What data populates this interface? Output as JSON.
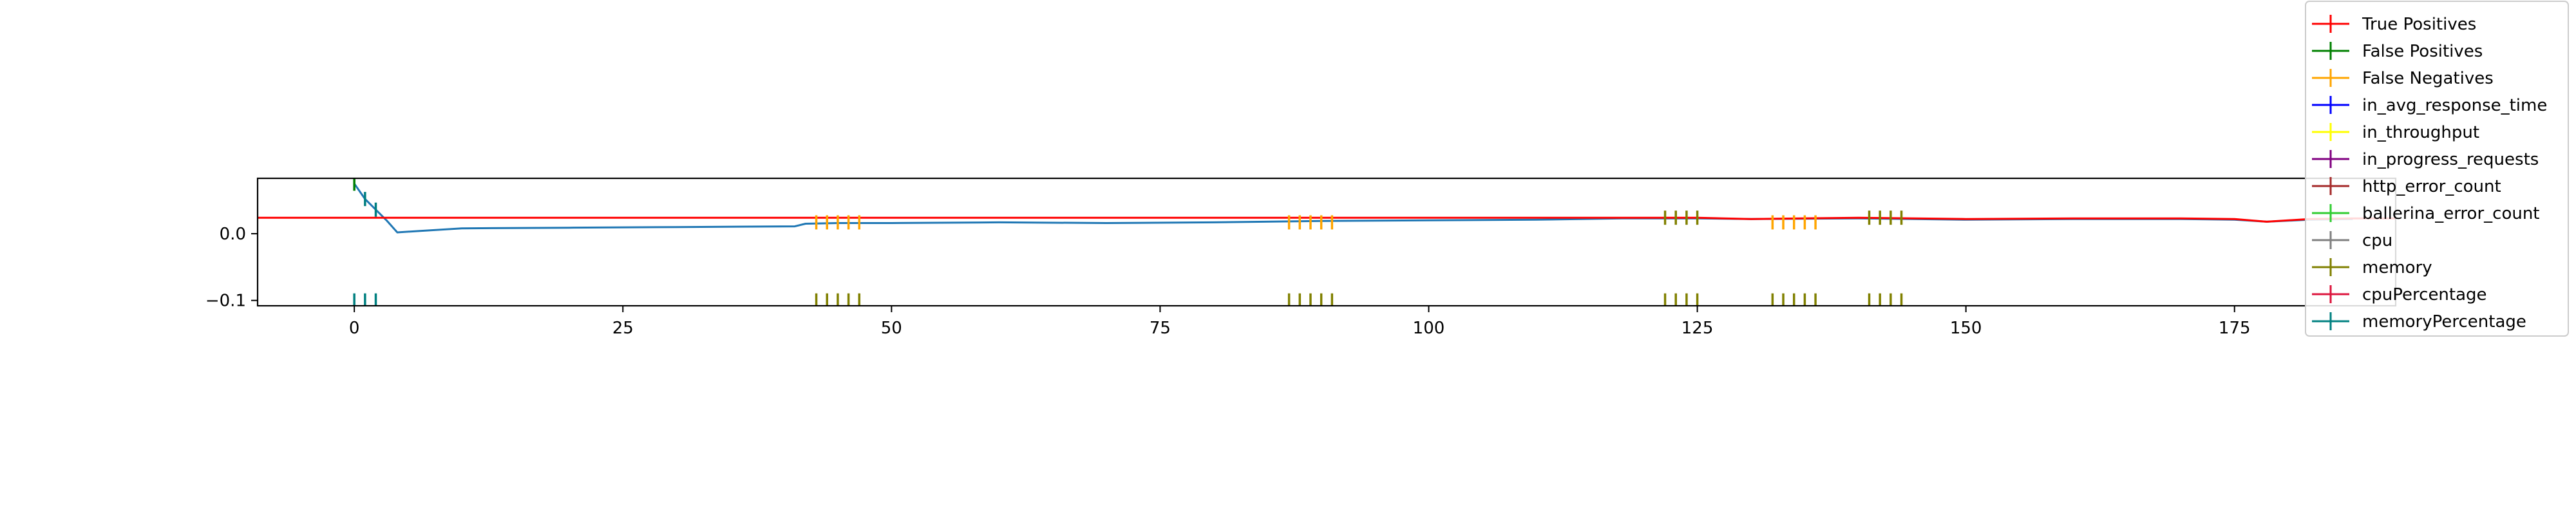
{
  "chart_data": {
    "type": "line",
    "xlim": [
      -9,
      190
    ],
    "ylim": [
      -0.108,
      0.083
    ],
    "x_ticks": [
      0,
      25,
      50,
      75,
      100,
      125,
      150,
      175
    ],
    "x_tick_labels": [
      "0",
      "25",
      "50",
      "75",
      "100",
      "125",
      "150",
      "175"
    ],
    "y_ticks": [
      0.0,
      -0.1
    ],
    "y_tick_labels": [
      "0.0",
      "−0.1"
    ],
    "grid": false,
    "legend_position": "top-right",
    "legend": [
      {
        "label": "True Positives",
        "color": "#ff0000"
      },
      {
        "label": "False Positives",
        "color": "#008000"
      },
      {
        "label": "False Negatives",
        "color": "#ffa500"
      },
      {
        "label": "in_avg_response_time",
        "color": "#0000ff"
      },
      {
        "label": "in_throughput",
        "color": "#ffff00"
      },
      {
        "label": "in_progress_requests",
        "color": "#800080"
      },
      {
        "label": "http_error_count",
        "color": "#a52a2a"
      },
      {
        "label": "ballerina_error_count",
        "color": "#32cd32"
      },
      {
        "label": "cpu",
        "color": "#808080"
      },
      {
        "label": "memory",
        "color": "#808000"
      },
      {
        "label": "cpuPercentage",
        "color": "#dc143c"
      },
      {
        "label": "memoryPercentage",
        "color": "#008080"
      }
    ],
    "series": [
      {
        "color": "#1f77b4",
        "x": [
          0,
          1,
          2,
          3,
          4,
          6,
          10,
          20,
          30,
          41,
          42,
          45,
          50,
          60,
          70,
          80,
          90,
          100,
          110,
          118,
          125,
          130,
          140,
          150,
          160,
          170,
          175,
          178,
          182,
          186
        ],
        "y": [
          0.075,
          0.052,
          0.036,
          0.02,
          0.002,
          0.004,
          0.008,
          0.009,
          0.01,
          0.011,
          0.015,
          0.016,
          0.016,
          0.017,
          0.016,
          0.017,
          0.019,
          0.02,
          0.021,
          0.023,
          0.023,
          0.022,
          0.023,
          0.021,
          0.022,
          0.022,
          0.021,
          0.018,
          0.021,
          0.022
        ]
      },
      {
        "color": "#ff0000",
        "x": [
          -9,
          118,
          125,
          130,
          140,
          150,
          160,
          170,
          175,
          178,
          182,
          186,
          190
        ],
        "y": [
          0.024,
          0.024,
          0.024,
          0.022,
          0.024,
          0.022,
          0.023,
          0.023,
          0.022,
          0.018,
          0.022,
          0.023,
          0.023
        ]
      }
    ],
    "marker_groups": [
      {
        "color": "#008080",
        "y": -0.1,
        "x": [
          0,
          1,
          2
        ]
      },
      {
        "color": "#008080",
        "y": "line",
        "x": [
          1,
          2
        ]
      },
      {
        "color": "#008000",
        "y": "line",
        "x": [
          0
        ]
      },
      {
        "color": "#ffa500",
        "y": 0.017,
        "x": [
          43,
          44,
          45,
          46,
          47,
          87,
          88,
          89,
          90,
          91,
          132,
          133,
          134,
          135,
          136
        ]
      },
      {
        "color": "#808000",
        "y": -0.1,
        "x": [
          43,
          44,
          45,
          46,
          47,
          87,
          88,
          89,
          90,
          91,
          122,
          123,
          124,
          125,
          132,
          133,
          134,
          135,
          136,
          141,
          142,
          143,
          144
        ]
      },
      {
        "color": "#808000",
        "y": 0.024,
        "x": [
          122,
          123,
          124,
          125,
          141,
          142,
          143,
          144
        ]
      }
    ]
  }
}
